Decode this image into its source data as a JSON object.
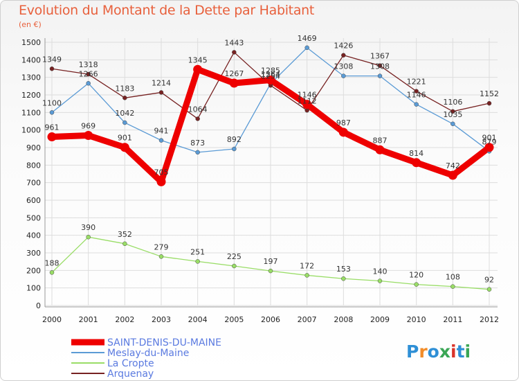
{
  "title": "Evolution du Montant de la Dette par Habitant",
  "subtitle": "(en €)",
  "logo_text": "Proxiti",
  "chart_data": {
    "type": "line",
    "x": [
      "2000",
      "2001",
      "2002",
      "2003",
      "2004",
      "2005",
      "2006",
      "2007",
      "2008",
      "2009",
      "2010",
      "2011",
      "2012"
    ],
    "ylim": [
      0,
      1500
    ],
    "yticks": [
      0,
      100,
      200,
      300,
      400,
      500,
      600,
      700,
      800,
      900,
      1000,
      1100,
      1200,
      1300,
      1400,
      1500
    ],
    "grid": true,
    "legend_position": "bottom-left",
    "series": [
      {
        "name": "SAINT-DENIS-DU-MAINE",
        "color": "#ee0000",
        "values": [
          961,
          969,
          901,
          705,
          1345,
          1267,
          1285,
          1146,
          987,
          887,
          814,
          742,
          901
        ]
      },
      {
        "name": "Meslay-du-Maine",
        "color": "#5b9bd5",
        "values": [
          1100,
          1266,
          1042,
          941,
          873,
          892,
          1264,
          1469,
          1308,
          1308,
          1146,
          1035,
          879
        ]
      },
      {
        "name": "La Cropte",
        "color": "#99dd66",
        "values": [
          188,
          390,
          352,
          279,
          251,
          225,
          197,
          172,
          153,
          140,
          120,
          108,
          92
        ]
      },
      {
        "name": "Arquenay",
        "color": "#772222",
        "values": [
          1349,
          1318,
          1183,
          1214,
          1064,
          1443,
          1254,
          1112,
          1426,
          1367,
          1221,
          1106,
          1152
        ]
      }
    ]
  }
}
